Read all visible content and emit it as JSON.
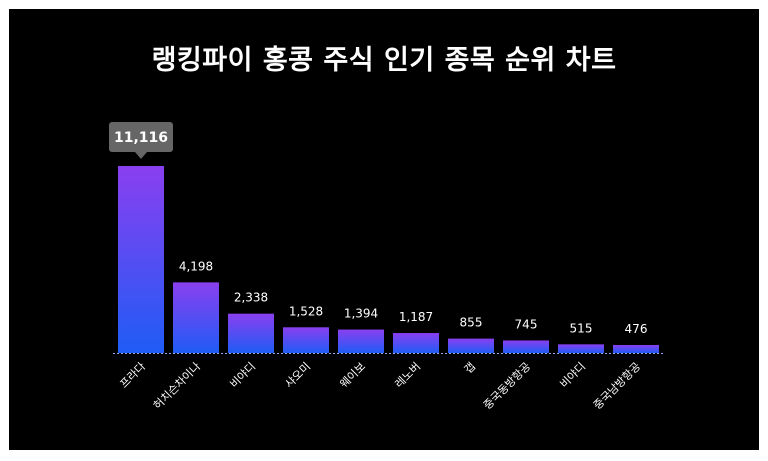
{
  "chart_data": {
    "type": "bar",
    "title": "랭킹파이 홍콩 주식 인기 종목 순위 차트",
    "categories": [
      "프라다",
      "허치슨차이나",
      "비야디",
      "샤오미",
      "웨이보",
      "레노버",
      "갭",
      "중국동방항공",
      "비야디",
      "중국남방항공"
    ],
    "values": [
      11116,
      4198,
      2338,
      1528,
      1394,
      1187,
      855,
      745,
      515,
      476
    ],
    "value_labels": [
      "11,116",
      "4,198",
      "2,338",
      "1,528",
      "1,394",
      "1,187",
      "855",
      "745",
      "515",
      "476"
    ],
    "highlight_index": 0,
    "ylim": [
      0,
      11116
    ],
    "grid": false,
    "legend": "none",
    "xlabel": "",
    "ylabel": "",
    "colors": {
      "background": "#000000",
      "bar_top": "#8a3ff0",
      "bar_bottom": "#1f5cf5",
      "text": "#ffffff",
      "callout": "#666666"
    }
  }
}
